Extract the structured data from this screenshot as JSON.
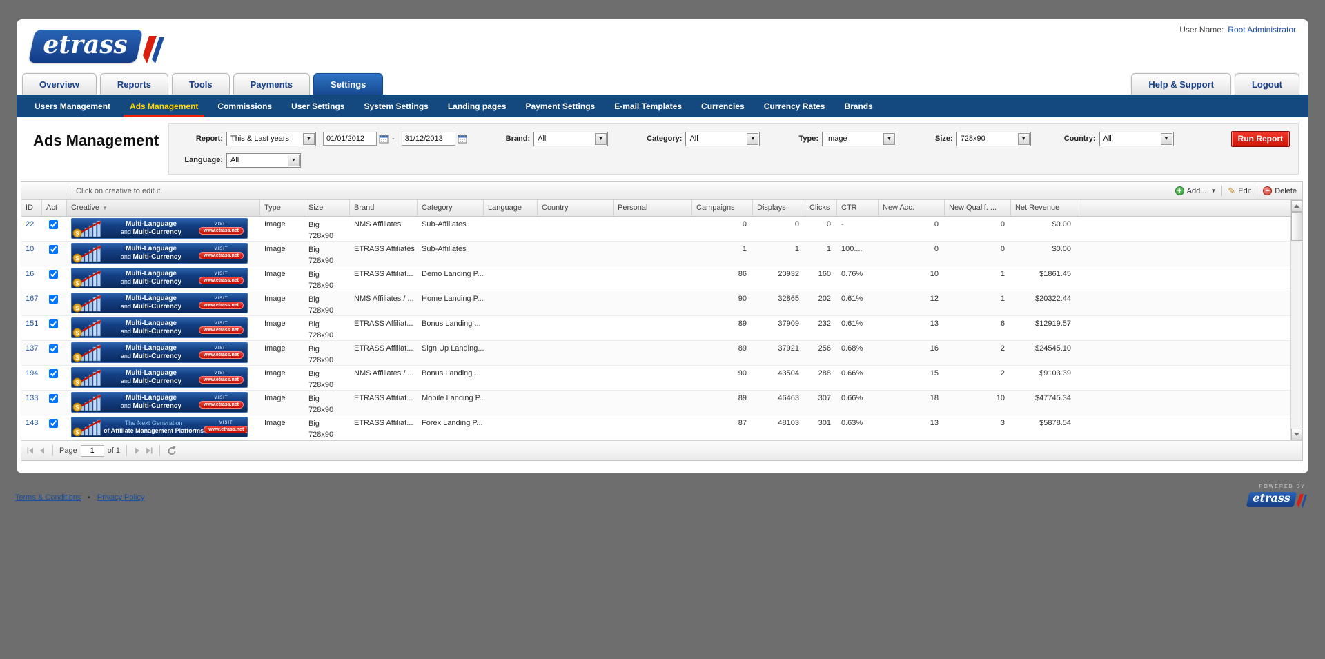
{
  "header": {
    "user_label": "User Name:",
    "user_value": "Root Administrator"
  },
  "logo": {
    "brand": "etrass"
  },
  "nav": {
    "left": [
      "Overview",
      "Reports",
      "Tools",
      "Payments",
      "Settings"
    ],
    "active_index": 4,
    "right": [
      "Help & Support",
      "Logout"
    ]
  },
  "subnav": {
    "items": [
      "Users Management",
      "Ads Management",
      "Commissions",
      "User Settings",
      "System Settings",
      "Landing pages",
      "Payment Settings",
      "E-mail Templates",
      "Currencies",
      "Currency Rates",
      "Brands"
    ],
    "active": "Ads Management"
  },
  "page": {
    "title": "Ads Management"
  },
  "filters": {
    "report": {
      "label": "Report:",
      "value": "This & Last years"
    },
    "date_from": "01/01/2012",
    "date_separator": "-",
    "date_to": "31/12/2013",
    "brand": {
      "label": "Brand:",
      "value": "All"
    },
    "category": {
      "label": "Category:",
      "value": "All"
    },
    "type": {
      "label": "Type:",
      "value": "Image"
    },
    "size": {
      "label": "Size:",
      "value": "728x90"
    },
    "country": {
      "label": "Country:",
      "value": "All"
    },
    "language": {
      "label": "Language:",
      "value": "All"
    },
    "run_report": "Run Report"
  },
  "toolbar": {
    "hint": "Click on creative to edit it.",
    "add_label": "Add...",
    "edit_label": "Edit",
    "delete_label": "Delete"
  },
  "banner": {
    "line1": "Multi-Language",
    "line2_prefix": "and ",
    "line2_bold": "Multi-Currency",
    "alt_line1": "The Next Generation",
    "alt_line2": "of Affiliate Management Platforms",
    "visit": "VISIT",
    "url": "www.etrass.net"
  },
  "table": {
    "columns": [
      "ID",
      "Act",
      "Creative",
      "Type",
      "Size",
      "Brand",
      "Category",
      "Language",
      "Country",
      "Personal",
      "Campaigns",
      "Displays",
      "Clicks",
      "CTR",
      "New Acc.",
      "New Qualif. ...",
      "Net Revenue"
    ],
    "sorted_column": "Creative",
    "rows": [
      {
        "id": "22",
        "checked": true,
        "banner": "multi",
        "type": "Image",
        "size_top": "Big",
        "size_bottom": "728x90",
        "brand": "NMS Affiliates",
        "category": "Sub-Affiliates",
        "language": "",
        "country": "",
        "personal": "",
        "campaigns": "0",
        "displays": "0",
        "clicks": "0",
        "ctr": "-",
        "new_acc": "0",
        "new_qualif": "0",
        "net_revenue": "$0.00"
      },
      {
        "id": "10",
        "checked": true,
        "banner": "multi",
        "type": "Image",
        "size_top": "Big",
        "size_bottom": "728x90",
        "brand": "ETRASS Affiliates",
        "category": "Sub-Affiliates",
        "language": "",
        "country": "",
        "personal": "",
        "campaigns": "1",
        "displays": "1",
        "clicks": "1",
        "ctr": "100....",
        "new_acc": "0",
        "new_qualif": "0",
        "net_revenue": "$0.00"
      },
      {
        "id": "16",
        "checked": true,
        "banner": "multi",
        "type": "Image",
        "size_top": "Big",
        "size_bottom": "728x90",
        "brand": "ETRASS Affiliat...",
        "category": "Demo Landing P...",
        "language": "",
        "country": "",
        "personal": "",
        "campaigns": "86",
        "displays": "20932",
        "clicks": "160",
        "ctr": "0.76%",
        "new_acc": "10",
        "new_qualif": "1",
        "net_revenue": "$1861.45"
      },
      {
        "id": "167",
        "checked": true,
        "banner": "multi",
        "type": "Image",
        "size_top": "Big",
        "size_bottom": "728x90",
        "brand": "NMS Affiliates / ...",
        "category": "Home Landing P...",
        "language": "",
        "country": "",
        "personal": "",
        "campaigns": "90",
        "displays": "32865",
        "clicks": "202",
        "ctr": "0.61%",
        "new_acc": "12",
        "new_qualif": "1",
        "net_revenue": "$20322.44"
      },
      {
        "id": "151",
        "checked": true,
        "banner": "multi",
        "type": "Image",
        "size_top": "Big",
        "size_bottom": "728x90",
        "brand": "ETRASS Affiliat...",
        "category": "Bonus Landing ...",
        "language": "",
        "country": "",
        "personal": "",
        "campaigns": "89",
        "displays": "37909",
        "clicks": "232",
        "ctr": "0.61%",
        "new_acc": "13",
        "new_qualif": "6",
        "net_revenue": "$12919.57"
      },
      {
        "id": "137",
        "checked": true,
        "banner": "multi",
        "type": "Image",
        "size_top": "Big",
        "size_bottom": "728x90",
        "brand": "ETRASS Affiliat...",
        "category": "Sign Up Landing...",
        "language": "",
        "country": "",
        "personal": "",
        "campaigns": "89",
        "displays": "37921",
        "clicks": "256",
        "ctr": "0.68%",
        "new_acc": "16",
        "new_qualif": "2",
        "net_revenue": "$24545.10"
      },
      {
        "id": "194",
        "checked": true,
        "banner": "multi",
        "type": "Image",
        "size_top": "Big",
        "size_bottom": "728x90",
        "brand": "NMS Affiliates / ...",
        "category": "Bonus Landing ...",
        "language": "",
        "country": "",
        "personal": "",
        "campaigns": "90",
        "displays": "43504",
        "clicks": "288",
        "ctr": "0.66%",
        "new_acc": "15",
        "new_qualif": "2",
        "net_revenue": "$9103.39"
      },
      {
        "id": "133",
        "checked": true,
        "banner": "multi",
        "type": "Image",
        "size_top": "Big",
        "size_bottom": "728x90",
        "brand": "ETRASS Affiliat...",
        "category": "Mobile Landing P...",
        "language": "",
        "country": "",
        "personal": "",
        "campaigns": "89",
        "displays": "46463",
        "clicks": "307",
        "ctr": "0.66%",
        "new_acc": "18",
        "new_qualif": "10",
        "net_revenue": "$47745.34"
      },
      {
        "id": "143",
        "checked": true,
        "banner": "nextgen",
        "type": "Image",
        "size_top": "Big",
        "size_bottom": "728x90",
        "brand": "ETRASS Affiliat...",
        "category": "Forex Landing P...",
        "language": "",
        "country": "",
        "personal": "",
        "campaigns": "87",
        "displays": "48103",
        "clicks": "301",
        "ctr": "0.63%",
        "new_acc": "13",
        "new_qualif": "3",
        "net_revenue": "$5878.54"
      }
    ]
  },
  "pagination": {
    "page_label": "Page",
    "page_value": "1",
    "of_label": "of 1"
  },
  "footer": {
    "terms": "Terms & Conditions",
    "separator": "•",
    "privacy": "Privacy Policy"
  },
  "powered": {
    "label": "POWERED BY",
    "brand": "etrass"
  },
  "colors": {
    "page_background": "#6e6e6e",
    "nav_blue": "#14497f",
    "tab_active_blue": "#1d5aa8",
    "subnav_active_yellow": "#ffd400",
    "subnav_underline_red": "#e8200c",
    "run_report_red": "#d6190a",
    "banner_navy": "#0d2f66",
    "link_blue": "#1c52a8"
  }
}
